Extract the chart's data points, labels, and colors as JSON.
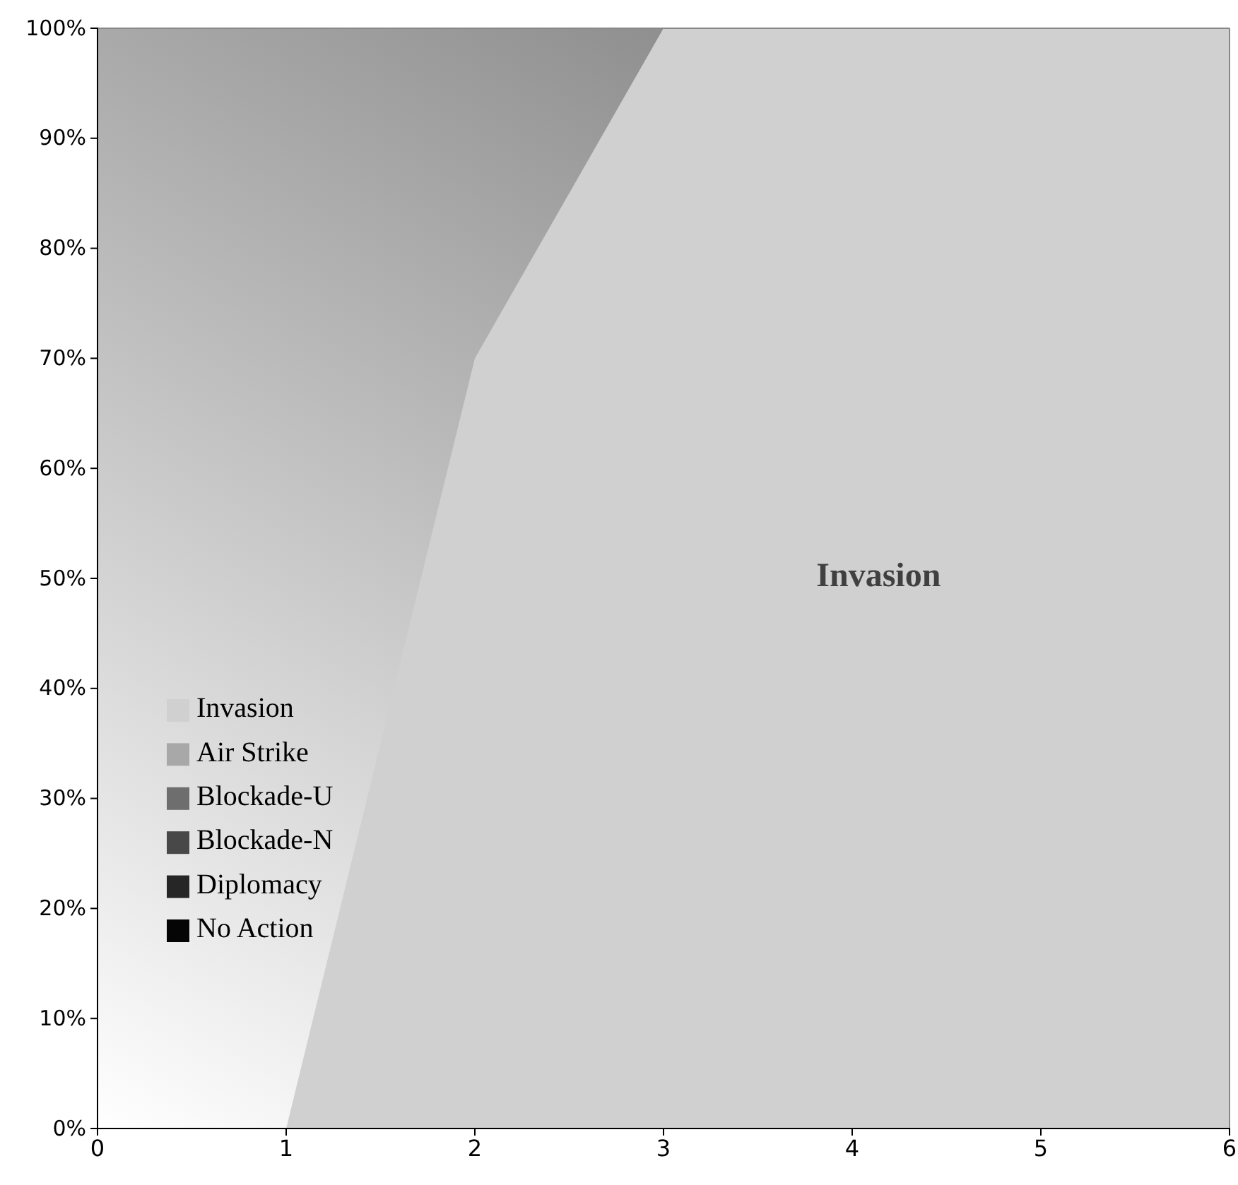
{
  "chart_data": {
    "type": "area",
    "x": [
      0,
      1,
      2,
      3,
      4,
      5,
      6
    ],
    "series": [
      {
        "name": "Invasion",
        "color": "#d0d0d0",
        "values": [
          0,
          0,
          70,
          100,
          100,
          100,
          100
        ]
      },
      {
        "name": "Air Strike",
        "color": "#a8a8a8",
        "values": [
          null,
          null,
          null,
          null,
          null,
          null,
          null
        ]
      },
      {
        "name": "Blockade-U",
        "color": "#6e6e6e",
        "values": [
          null,
          null,
          null,
          null,
          null,
          null,
          null
        ]
      },
      {
        "name": "Blockade-N",
        "color": "#484848",
        "values": [
          null,
          null,
          null,
          null,
          null,
          null,
          null
        ]
      },
      {
        "name": "Diplomacy",
        "color": "#262626",
        "values": [
          null,
          null,
          null,
          null,
          null,
          null,
          null
        ]
      },
      {
        "name": "No Action",
        "color": "#050505",
        "values": [
          null,
          null,
          null,
          null,
          null,
          null,
          null
        ]
      }
    ],
    "xlim": [
      0,
      6
    ],
    "xticks": [
      0,
      1,
      2,
      3,
      4,
      5,
      6
    ],
    "ylim": [
      0,
      100
    ],
    "yticks": [
      {
        "value": 0,
        "label": "0%"
      },
      {
        "value": 10,
        "label": "10%"
      },
      {
        "value": 20,
        "label": "20%"
      },
      {
        "value": 30,
        "label": "30%"
      },
      {
        "value": 40,
        "label": "40%"
      },
      {
        "value": 50,
        "label": "50%"
      },
      {
        "value": 60,
        "label": "60%"
      },
      {
        "value": 70,
        "label": "70%"
      },
      {
        "value": 80,
        "label": "80%"
      },
      {
        "value": 90,
        "label": "90%"
      },
      {
        "value": 100,
        "label": "100%"
      }
    ],
    "annotations": [
      "Invasion"
    ],
    "legend": "bottom left",
    "grid": false
  }
}
